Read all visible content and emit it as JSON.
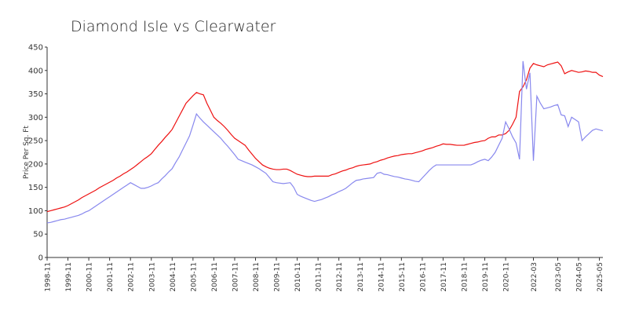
{
  "chart_data": {
    "type": "line",
    "title": "Diamond Isle vs Clearwater",
    "y_label": "Price Per Sq. Ft",
    "categories": [
      "1998-11",
      null,
      null,
      null,
      null,
      null,
      "1999-11",
      null,
      null,
      null,
      null,
      null,
      "2000-11",
      null,
      null,
      null,
      null,
      null,
      "2001-11",
      null,
      null,
      null,
      null,
      null,
      "2002-11",
      null,
      null,
      null,
      null,
      null,
      "2003-11",
      null,
      null,
      null,
      null,
      null,
      "2004-11",
      null,
      null,
      null,
      null,
      null,
      "2005-11",
      null,
      null,
      null,
      null,
      null,
      "2006-11",
      null,
      null,
      null,
      null,
      null,
      "2007-11",
      null,
      null,
      null,
      null,
      null,
      "2008-11",
      null,
      null,
      null,
      null,
      null,
      "2009-11",
      null,
      null,
      null,
      null,
      null,
      "2010-11",
      null,
      null,
      null,
      null,
      null,
      "2011-11",
      null,
      null,
      null,
      null,
      null,
      "2012-11",
      null,
      null,
      null,
      null,
      null,
      "2013-11",
      null,
      null,
      null,
      null,
      null,
      "2014-11",
      null,
      null,
      null,
      null,
      null,
      "2015-11",
      null,
      null,
      null,
      null,
      null,
      "2016-11",
      null,
      null,
      null,
      null,
      null,
      "2017-11",
      null,
      null,
      null,
      null,
      null,
      "2018-11",
      null,
      null,
      null,
      null,
      null,
      "2019-11",
      null,
      null,
      null,
      null,
      null,
      "2020-11",
      null,
      null,
      null,
      null,
      null,
      null,
      null,
      "2022-03",
      null,
      null,
      null,
      null,
      null,
      null,
      "2023-05",
      null,
      null,
      null,
      null,
      null,
      "2024-05",
      null,
      null,
      null,
      null,
      null,
      "2025-05",
      null
    ],
    "series": [
      {
        "color": "#ee1111",
        "values": [
          98,
          100,
          102,
          104,
          106,
          108,
          111,
          115,
          119,
          123,
          128,
          132,
          136,
          140,
          144,
          149,
          153,
          157,
          161,
          165,
          170,
          174,
          179,
          183,
          188,
          193,
          199,
          205,
          211,
          216,
          222,
          231,
          240,
          248,
          257,
          265,
          274,
          288,
          302,
          316,
          330,
          338,
          346,
          353,
          350,
          348,
          330,
          315,
          300,
          293,
          287,
          280,
          272,
          263,
          255,
          250,
          245,
          240,
          230,
          221,
          212,
          205,
          198,
          194,
          191,
          189,
          188,
          188,
          189,
          189,
          186,
          182,
          178,
          176,
          174,
          173,
          173,
          174,
          174,
          174,
          174,
          174,
          177,
          179,
          182,
          185,
          187,
          190,
          192,
          195,
          197,
          198,
          199,
          200,
          203,
          205,
          208,
          210,
          213,
          215,
          217,
          218,
          220,
          221,
          222,
          222,
          224,
          226,
          228,
          231,
          233,
          235,
          238,
          240,
          243,
          242,
          242,
          241,
          240,
          240,
          240,
          242,
          244,
          246,
          247,
          249,
          250,
          255,
          258,
          258,
          262,
          262,
          265,
          272,
          285,
          300,
          355,
          365,
          380,
          405,
          415,
          412,
          410,
          408,
          412,
          414,
          416,
          418,
          410,
          393,
          397,
          400,
          398,
          396,
          397,
          399,
          398,
          396,
          396,
          390,
          387
        ]
      },
      {
        "color": "#8888ee",
        "values": [
          74,
          75,
          77,
          79,
          81,
          82,
          84,
          86,
          88,
          90,
          93,
          97,
          100,
          105,
          110,
          115,
          120,
          125,
          130,
          135,
          140,
          145,
          150,
          155,
          160,
          156,
          152,
          148,
          148,
          150,
          153,
          157,
          160,
          168,
          175,
          183,
          190,
          203,
          215,
          230,
          245,
          260,
          283,
          307,
          298,
          290,
          283,
          276,
          269,
          262,
          255,
          246,
          238,
          229,
          220,
          210,
          207,
          204,
          201,
          198,
          194,
          190,
          185,
          180,
          171,
          162,
          160,
          159,
          158,
          159,
          160,
          150,
          135,
          131,
          128,
          125,
          122,
          120,
          122,
          124,
          127,
          130,
          134,
          137,
          141,
          144,
          148,
          154,
          160,
          165,
          166,
          168,
          169,
          170,
          171,
          180,
          182,
          178,
          177,
          175,
          173,
          172,
          170,
          168,
          167,
          165,
          163,
          162,
          170,
          178,
          186,
          193,
          198,
          198,
          198,
          198,
          198,
          198,
          198,
          198,
          198,
          198,
          198,
          201,
          205,
          208,
          210,
          207,
          215,
          225,
          240,
          255,
          290,
          275,
          258,
          245,
          210,
          420,
          360,
          395,
          207,
          345,
          330,
          318,
          320,
          322,
          325,
          327,
          305,
          303,
          280,
          300,
          295,
          290,
          250,
          258,
          265,
          272,
          275,
          273,
          271
        ]
      }
    ],
    "ylim": [
      0,
      450
    ],
    "yticks": [
      0,
      50,
      100,
      150,
      200,
      250,
      300,
      350,
      400,
      450
    ],
    "grid": false
  }
}
